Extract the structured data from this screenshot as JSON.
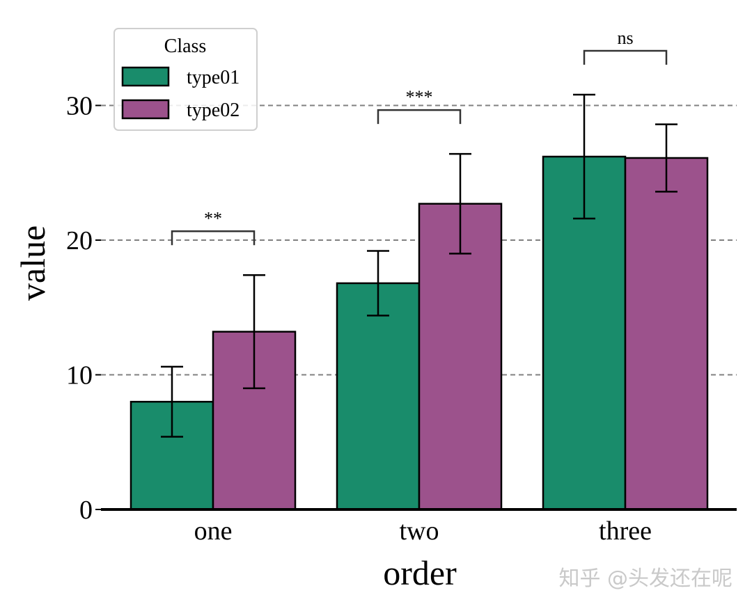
{
  "chart_data": {
    "type": "bar",
    "categories": [
      "one",
      "two",
      "three"
    ],
    "series": [
      {
        "name": "type01",
        "values": [
          8.0,
          16.8,
          26.2
        ],
        "errors": [
          2.6,
          2.4,
          4.6
        ]
      },
      {
        "name": "type02",
        "values": [
          13.2,
          22.7,
          26.1
        ],
        "errors": [
          4.2,
          3.7,
          2.5
        ]
      }
    ],
    "xlabel": "order",
    "ylabel": "value",
    "ylim": [
      0,
      35
    ],
    "yticks": [
      0,
      10,
      20,
      30
    ],
    "grid": "horizontal dashed",
    "legend": {
      "title": "Class",
      "position": "top-left"
    },
    "significance": [
      {
        "category": "one",
        "label": "**"
      },
      {
        "category": "two",
        "label": "***"
      },
      {
        "category": "three",
        "label": "ns"
      }
    ],
    "colors": {
      "type01": "#198c6b",
      "type02": "#9c528c",
      "grid": "#808080",
      "edge": "#000000"
    }
  },
  "watermark": "知乎 @头发还在呢"
}
